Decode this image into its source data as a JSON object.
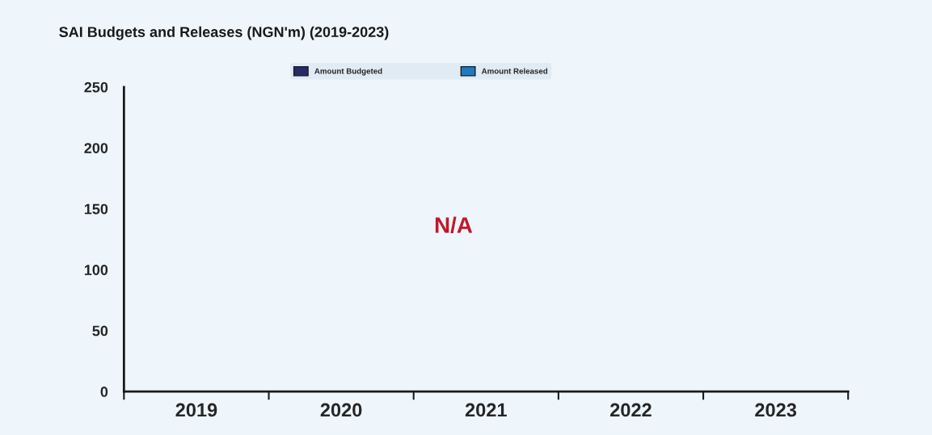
{
  "chart_data": {
    "type": "bar",
    "title": "SAI Budgets and Releases (NGN'm) (2019-2023)",
    "categories": [
      "2019",
      "2020",
      "2021",
      "2022",
      "2023"
    ],
    "series": [
      {
        "name": "Amount Budgeted",
        "color": "#252a6a",
        "values": [
          null,
          null,
          null,
          null,
          null
        ]
      },
      {
        "name": "Amount Released",
        "color": "#1b7bc4",
        "values": [
          null,
          null,
          null,
          null,
          null
        ]
      }
    ],
    "ylim": [
      0,
      250
    ],
    "yticks": [
      0,
      50,
      100,
      150,
      200,
      250
    ],
    "grid": false,
    "legend": "top",
    "annotations": [
      "N/A"
    ]
  }
}
